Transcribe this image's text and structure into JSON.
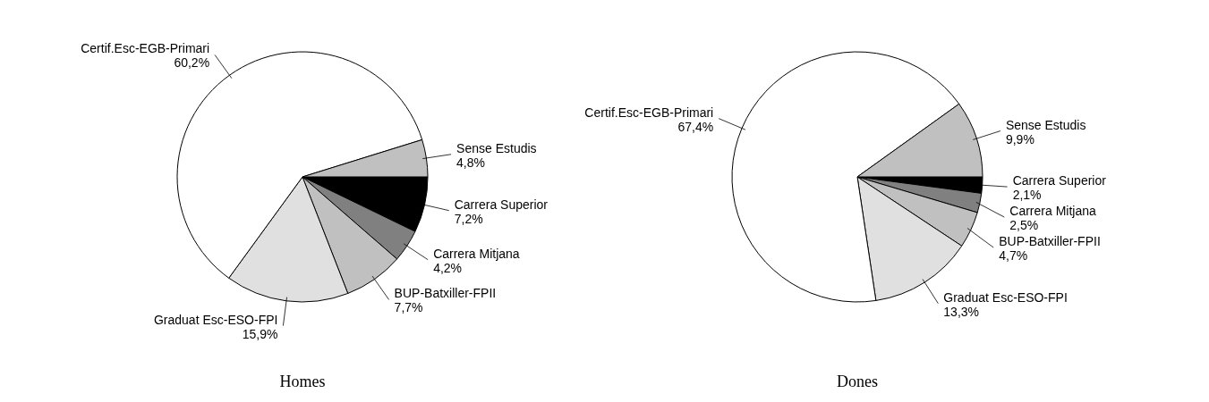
{
  "chart_data": [
    {
      "type": "pie",
      "title": "Homes",
      "categories": [
        "Carrera Superior",
        "Carrera Mitjana",
        "BUP-Batxiller-FPII",
        "Graduat Esc-ESO-FPI",
        "Certif.Esc-EGB-Primari",
        "Sense Estudis"
      ],
      "values": [
        7.2,
        4.2,
        7.7,
        15.9,
        60.2,
        4.8
      ],
      "value_labels": [
        "7,2%",
        "4,2%",
        "7,7%",
        "15,9%",
        "60,2%",
        "4,8%"
      ],
      "colors": [
        "#000000",
        "#808080",
        "#c0c0c0",
        "#e0e0e0",
        "#ffffff",
        "#c0c0c0"
      ]
    },
    {
      "type": "pie",
      "title": "Dones",
      "categories": [
        "Carrera Superior",
        "Carrera Mitjana",
        "BUP-Batxiller-FPII",
        "Graduat Esc-ESO-FPI",
        "Certif.Esc-EGB-Primari",
        "Sense Estudis"
      ],
      "values": [
        2.1,
        2.5,
        4.7,
        13.3,
        67.4,
        9.9
      ],
      "value_labels": [
        "2,1%",
        "2,5%",
        "4,7%",
        "13,3%",
        "67,4%",
        "9,9%"
      ],
      "colors": [
        "#000000",
        "#808080",
        "#c0c0c0",
        "#e0e0e0",
        "#ffffff",
        "#c0c0c0"
      ]
    }
  ]
}
